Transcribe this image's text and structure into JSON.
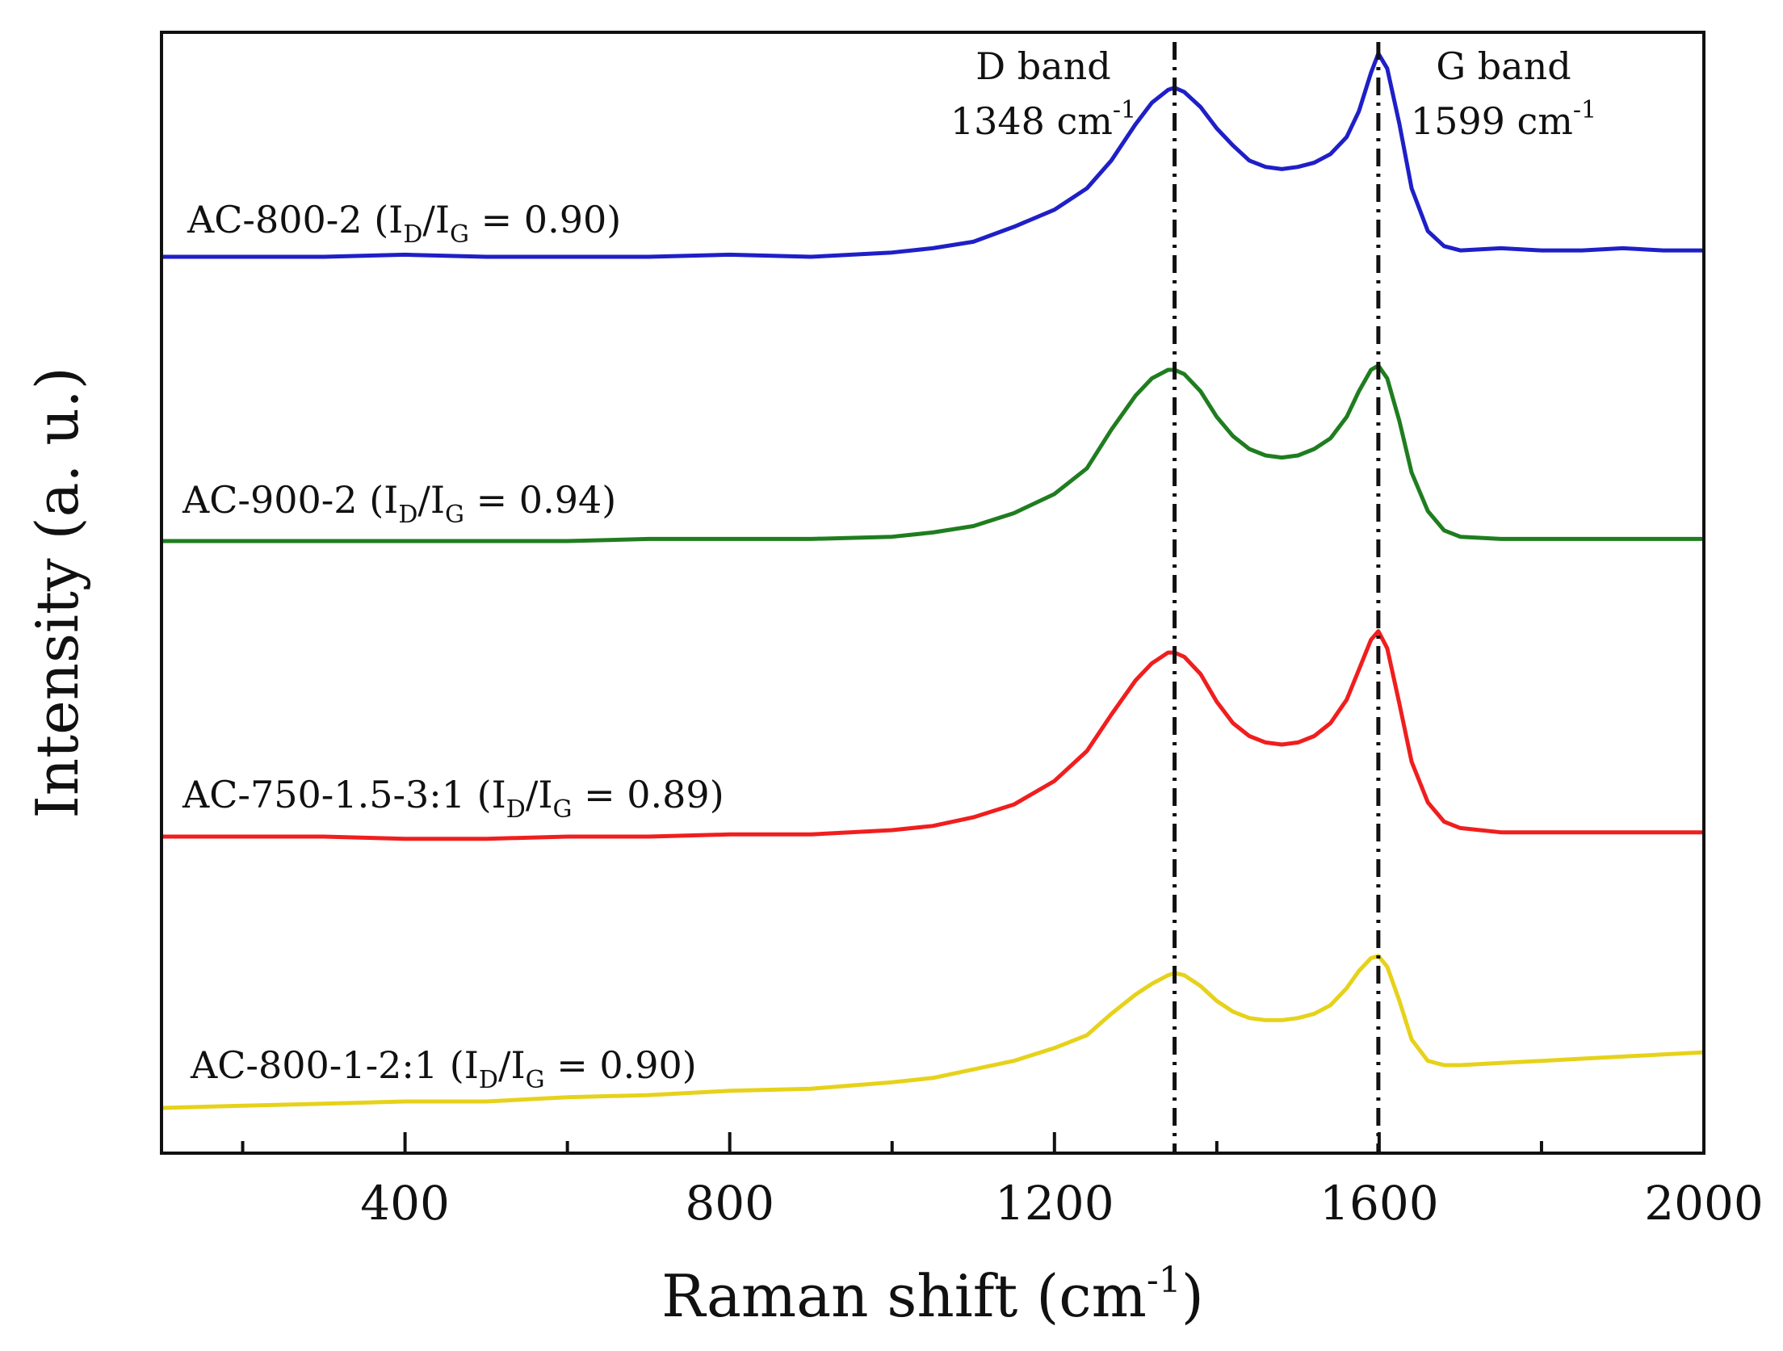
{
  "chart_data": {
    "type": "line",
    "xlabel": "Raman shift (cm",
    "xlabel_sup": "-1",
    "xlabel_end": ")",
    "ylabel": "Intensity (a. u.)",
    "xlim": [
      100,
      2000
    ],
    "x_ticks": [
      400,
      800,
      1200,
      1600,
      2000
    ],
    "x_minor_ticks": [
      200,
      600,
      1000,
      1400,
      1800
    ],
    "y_ticks_shown": false,
    "grid": false,
    "legend": "inline labels at left of each curve",
    "bands": [
      {
        "name": "D band",
        "position_label": "1348 cm",
        "position_sup": "-1",
        "x": 1348
      },
      {
        "name": "G band",
        "position_label": "1599 cm",
        "position_sup": "-1",
        "x": 1599
      }
    ],
    "series": [
      {
        "name": "AC-800-2",
        "ratio_label": "0.90",
        "color": "#1f1fc8",
        "x": [
          100,
          200,
          300,
          400,
          500,
          600,
          700,
          800,
          900,
          1000,
          1050,
          1100,
          1150,
          1200,
          1240,
          1270,
          1300,
          1320,
          1340,
          1348,
          1360,
          1380,
          1400,
          1420,
          1440,
          1460,
          1480,
          1500,
          1520,
          1540,
          1560,
          1575,
          1590,
          1599,
          1610,
          1625,
          1640,
          1660,
          1680,
          1700,
          1750,
          1800,
          1850,
          1900,
          1950,
          2000
        ],
        "y": [
          0.0,
          0.0,
          0.0,
          0.01,
          0.0,
          0.0,
          0.0,
          0.01,
          0.0,
          0.02,
          0.04,
          0.07,
          0.14,
          0.22,
          0.32,
          0.45,
          0.62,
          0.72,
          0.78,
          0.79,
          0.77,
          0.7,
          0.6,
          0.52,
          0.45,
          0.42,
          0.41,
          0.42,
          0.44,
          0.48,
          0.56,
          0.68,
          0.86,
          0.95,
          0.88,
          0.62,
          0.32,
          0.12,
          0.05,
          0.03,
          0.04,
          0.03,
          0.03,
          0.04,
          0.03,
          0.03
        ]
      },
      {
        "name": "AC-900-2",
        "ratio_label": "0.94",
        "color": "#1f7d1f",
        "x": [
          100,
          200,
          300,
          400,
          500,
          600,
          700,
          800,
          900,
          1000,
          1050,
          1100,
          1150,
          1200,
          1240,
          1270,
          1300,
          1320,
          1340,
          1348,
          1360,
          1380,
          1400,
          1420,
          1440,
          1460,
          1480,
          1500,
          1520,
          1540,
          1560,
          1575,
          1590,
          1599,
          1610,
          1625,
          1640,
          1660,
          1680,
          1700,
          1750,
          1800,
          1850,
          1900,
          1950,
          2000
        ],
        "y": [
          0.0,
          0.0,
          0.0,
          0.0,
          0.0,
          0.0,
          0.01,
          0.01,
          0.01,
          0.02,
          0.04,
          0.07,
          0.13,
          0.22,
          0.34,
          0.52,
          0.68,
          0.76,
          0.8,
          0.8,
          0.78,
          0.7,
          0.58,
          0.49,
          0.43,
          0.4,
          0.39,
          0.4,
          0.43,
          0.48,
          0.58,
          0.7,
          0.8,
          0.82,
          0.76,
          0.56,
          0.32,
          0.14,
          0.05,
          0.02,
          0.01,
          0.01,
          0.01,
          0.01,
          0.01,
          0.01
        ]
      },
      {
        "name": "AC-750-1.5-3:1",
        "ratio_label": "0.89",
        "color": "#f01e1e",
        "x": [
          100,
          200,
          300,
          400,
          500,
          600,
          700,
          800,
          900,
          1000,
          1050,
          1100,
          1150,
          1200,
          1240,
          1270,
          1300,
          1320,
          1340,
          1348,
          1360,
          1380,
          1400,
          1420,
          1440,
          1460,
          1480,
          1500,
          1520,
          1540,
          1560,
          1575,
          1590,
          1599,
          1610,
          1625,
          1640,
          1660,
          1680,
          1700,
          1750,
          1800,
          1850,
          1900,
          1950,
          2000
        ],
        "y": [
          0.0,
          0.0,
          0.0,
          -0.01,
          -0.01,
          0.0,
          0.0,
          0.01,
          0.01,
          0.03,
          0.05,
          0.09,
          0.15,
          0.26,
          0.4,
          0.57,
          0.73,
          0.81,
          0.86,
          0.86,
          0.84,
          0.76,
          0.63,
          0.53,
          0.47,
          0.44,
          0.43,
          0.44,
          0.47,
          0.53,
          0.64,
          0.78,
          0.92,
          0.96,
          0.88,
          0.62,
          0.35,
          0.16,
          0.07,
          0.04,
          0.02,
          0.02,
          0.02,
          0.02,
          0.02,
          0.02
        ]
      },
      {
        "name": "AC-800-1-2:1",
        "ratio_label": "0.90",
        "color": "#e6d21a",
        "x": [
          100,
          200,
          300,
          400,
          500,
          600,
          700,
          800,
          900,
          1000,
          1050,
          1100,
          1150,
          1200,
          1240,
          1270,
          1300,
          1320,
          1340,
          1348,
          1360,
          1380,
          1400,
          1420,
          1440,
          1460,
          1480,
          1500,
          1520,
          1540,
          1560,
          1575,
          1590,
          1599,
          1610,
          1625,
          1640,
          1660,
          1680,
          1700,
          1750,
          1800,
          1850,
          1900,
          1950,
          2000
        ],
        "y": [
          0.0,
          0.01,
          0.02,
          0.03,
          0.03,
          0.05,
          0.06,
          0.08,
          0.09,
          0.12,
          0.14,
          0.18,
          0.22,
          0.28,
          0.34,
          0.44,
          0.53,
          0.58,
          0.62,
          0.63,
          0.62,
          0.57,
          0.5,
          0.45,
          0.42,
          0.41,
          0.41,
          0.42,
          0.44,
          0.48,
          0.56,
          0.64,
          0.7,
          0.71,
          0.66,
          0.5,
          0.32,
          0.22,
          0.2,
          0.2,
          0.21,
          0.22,
          0.23,
          0.24,
          0.25,
          0.26
        ]
      }
    ]
  }
}
